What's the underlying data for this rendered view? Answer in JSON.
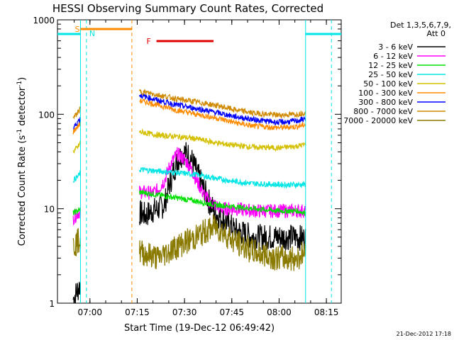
{
  "chart_data": {
    "type": "line",
    "title": "HESSI Observing Summary Count Rates, Corrected",
    "xlabel": "Start Time (19-Dec-12 06:49:42)",
    "ylabel": "Corrected Count Rate (s⁻¹ detector⁻¹)",
    "ylabel_main": "Corrected Count Rate (s",
    "ylabel_sup1": "-1",
    "ylabel_mid": " detector",
    "ylabel_sup2": "-1",
    "ylabel_end": ")",
    "date_stamp": "21-Dec-2012 17:18",
    "x_unit": "minutes since 06:49:42",
    "xlim": [
      0,
      90
    ],
    "ylim": [
      1,
      1000
    ],
    "yscale": "log",
    "x_ticks": [
      {
        "label": "07:00",
        "value": 10.3
      },
      {
        "label": "07:15",
        "value": 25.3
      },
      {
        "label": "07:30",
        "value": 40.3
      },
      {
        "label": "07:45",
        "value": 55.3
      },
      {
        "label": "08:00",
        "value": 70.3
      },
      {
        "label": "08:15",
        "value": 85.3
      }
    ],
    "y_ticks": [
      {
        "label": "1",
        "value": 1
      },
      {
        "label": "10",
        "value": 10
      },
      {
        "label": "100",
        "value": 100
      },
      {
        "label": "1000",
        "value": 1000
      }
    ],
    "legend": {
      "header": [
        "Det 1,3,5,6,7,9,",
        "Att 0"
      ],
      "placement": "right"
    },
    "markers": [
      {
        "label": "S",
        "x0": 7.3,
        "x1": 23.6,
        "color": "#ff8c00"
      },
      {
        "label": "N",
        "color": "#00e5e5"
      },
      {
        "label": "F",
        "x0": 31.4,
        "x1": 49.5,
        "color": "#e00000"
      }
    ],
    "night_intervals": [
      [
        -2.0,
        7.3
      ],
      [
        78.7,
        90
      ]
    ],
    "night_dashes": [
      9.2,
      86.9
    ],
    "saa_dashes": [
      23.6
    ],
    "series": [
      {
        "name": "3 - 6 keV",
        "color": "#000000",
        "x": [
          5.0,
          6.5,
          7.3,
          26.0,
          28.0,
          30.0,
          32.0,
          34.0,
          36.0,
          38.0,
          40.0,
          42.0,
          44.0,
          46.0,
          48.0,
          50.0,
          52.0,
          56.0,
          62.0,
          70.0,
          76.0,
          78.7
        ],
        "values": [
          1.1,
          1.4,
          1.6,
          9.0,
          8.5,
          9.5,
          10.0,
          11.0,
          20.0,
          32.0,
          40.0,
          36.0,
          25.0,
          17.0,
          12.0,
          9.0,
          8.0,
          6.0,
          5.0,
          5.0,
          5.0,
          4.8
        ]
      },
      {
        "name": "6 - 12 keV",
        "color": "#ff00ff",
        "x": [
          5.0,
          6.5,
          7.3,
          26.0,
          28.0,
          30.0,
          32.0,
          34.0,
          36.0,
          38.0,
          40.0,
          42.0,
          44.0,
          46.0,
          48.0,
          50.0,
          52.0,
          56.0,
          62.0,
          70.0,
          76.0,
          78.7
        ],
        "values": [
          8.0,
          9.0,
          9.5,
          15.0,
          15.0,
          14.5,
          16.0,
          20.0,
          30.0,
          38.0,
          34.0,
          28.0,
          20.0,
          15.0,
          12.0,
          11.0,
          10.0,
          10.0,
          9.5,
          9.5,
          9.5,
          9.5
        ]
      },
      {
        "name": "12 - 25 keV",
        "color": "#00e000",
        "x": [
          5.0,
          6.5,
          7.3,
          26.0,
          32.0,
          38.0,
          44.0,
          50.0,
          56.0,
          62.0,
          70.0,
          76.0,
          78.7
        ],
        "values": [
          9.0,
          9.5,
          9.8,
          15.0,
          14.0,
          13.0,
          12.0,
          11.0,
          10.5,
          10.0,
          9.5,
          9.5,
          9.0
        ]
      },
      {
        "name": "25 - 50 keV",
        "color": "#00e5e5",
        "x": [
          5.0,
          6.5,
          7.3,
          26.0,
          32.0,
          38.0,
          44.0,
          50.0,
          56.0,
          62.0,
          70.0,
          76.0,
          78.7
        ],
        "values": [
          20.0,
          22.0,
          24.0,
          26.0,
          25.0,
          24.0,
          23.0,
          21.0,
          19.5,
          18.5,
          18.0,
          18.0,
          18.0
        ]
      },
      {
        "name": "50 - 100 keV",
        "color": "#d4c000",
        "x": [
          5.0,
          6.5,
          7.3,
          26.0,
          32.0,
          38.0,
          44.0,
          50.0,
          56.0,
          62.0,
          70.0,
          76.0,
          78.7
        ],
        "values": [
          40.0,
          45.0,
          50.0,
          65.0,
          60.0,
          58.0,
          55.0,
          50.0,
          47.0,
          45.0,
          44.0,
          46.0,
          48.0
        ]
      },
      {
        "name": "100 - 300 keV",
        "color": "#ff8c00",
        "x": [
          5.0,
          6.5,
          7.3,
          26.0,
          32.0,
          38.0,
          44.0,
          50.0,
          56.0,
          62.0,
          70.0,
          76.0,
          78.7
        ],
        "values": [
          65.0,
          75.0,
          80.0,
          140.0,
          125.0,
          110.0,
          100.0,
          92.0,
          82.0,
          75.0,
          72.0,
          74.0,
          78.0
        ]
      },
      {
        "name": "300 - 800 keV",
        "color": "#0000ff",
        "x": [
          5.0,
          6.5,
          7.3,
          26.0,
          32.0,
          38.0,
          44.0,
          50.0,
          56.0,
          62.0,
          70.0,
          76.0,
          78.7
        ],
        "values": [
          70.0,
          85.0,
          90.0,
          160.0,
          140.0,
          125.0,
          115.0,
          105.0,
          95.0,
          88.0,
          82.0,
          85.0,
          90.0
        ]
      },
      {
        "name": "800 - 7000 keV",
        "color": "#d08a00",
        "x": [
          5.0,
          6.5,
          7.3,
          26.0,
          32.0,
          38.0,
          44.0,
          50.0,
          56.0,
          62.0,
          70.0,
          76.0,
          78.7
        ],
        "values": [
          90.0,
          105.0,
          115.0,
          175.0,
          160.0,
          145.0,
          135.0,
          125.0,
          112.0,
          103.0,
          98.0,
          100.0,
          105.0
        ]
      },
      {
        "name": "7000 - 20000 keV",
        "color": "#8a7a00",
        "x": [
          5.0,
          6.5,
          7.3,
          26.0,
          32.0,
          38.0,
          44.0,
          50.0,
          56.0,
          62.0,
          70.0,
          76.0,
          78.7
        ],
        "values": [
          4.0,
          4.5,
          5.0,
          3.5,
          3.0,
          4.0,
          5.0,
          6.5,
          4.5,
          3.5,
          3.0,
          3.0,
          3.5
        ]
      }
    ]
  }
}
